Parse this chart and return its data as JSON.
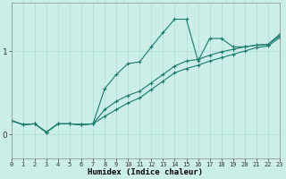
{
  "xlabel": "Humidex (Indice chaleur)",
  "background_color": "#cceee8",
  "grid_color": "#aaddd8",
  "line_color": "#1a7a6e",
  "x_ticks": [
    0,
    1,
    2,
    3,
    4,
    5,
    6,
    7,
    8,
    9,
    10,
    11,
    12,
    13,
    14,
    15,
    16,
    17,
    18,
    19,
    20,
    21,
    22,
    23
  ],
  "y_ticks": [
    0,
    1
  ],
  "xlim": [
    0,
    23
  ],
  "ylim": [
    -0.28,
    1.58
  ],
  "series": [
    [
      0.17,
      0.12,
      0.13,
      0.03,
      0.13,
      0.13,
      0.12,
      0.13,
      0.55,
      0.72,
      0.85,
      0.87,
      1.05,
      1.22,
      1.38,
      1.38,
      0.88,
      1.15,
      1.15,
      1.05,
      1.05,
      1.07,
      1.08,
      1.2
    ],
    [
      0.17,
      0.12,
      0.13,
      0.03,
      0.13,
      0.13,
      0.12,
      0.13,
      0.3,
      0.4,
      0.47,
      0.52,
      0.62,
      0.72,
      0.82,
      0.88,
      0.9,
      0.95,
      0.99,
      1.02,
      1.05,
      1.07,
      1.08,
      1.18
    ],
    [
      0.17,
      0.12,
      0.13,
      0.03,
      0.13,
      0.13,
      0.12,
      0.13,
      0.22,
      0.3,
      0.38,
      0.44,
      0.54,
      0.64,
      0.74,
      0.79,
      0.83,
      0.88,
      0.92,
      0.96,
      1.0,
      1.04,
      1.06,
      1.16
    ]
  ]
}
